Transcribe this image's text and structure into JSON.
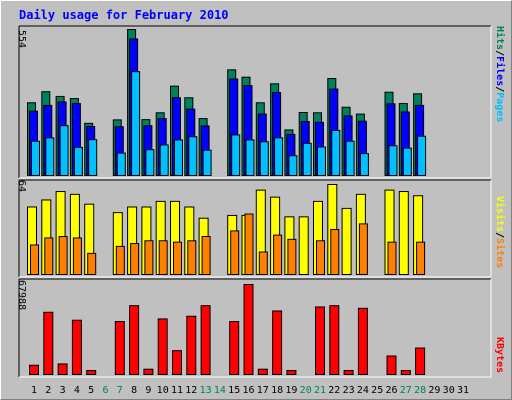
{
  "title": "Daily usage for February 2010",
  "colors": {
    "background": "#c0c0c0",
    "title": "#0000ff",
    "hits": "#00805c",
    "files": "#0000ff",
    "pages": "#00c0ff",
    "visits": "#ffff00",
    "sites": "#ff8000",
    "kbytes": "#ff0000",
    "weekend_day_label": "#00805c",
    "day_label": "#000000"
  },
  "chart_data": [
    {
      "type": "bar",
      "panel": "hits-files-pages",
      "y_max_label": "554",
      "ylim": [
        0,
        554
      ],
      "legend": [
        "Pages",
        "Files",
        "Hits"
      ],
      "legend_separator": "/",
      "series": [
        {
          "name": "Hits",
          "values": [
            276,
            318,
            300,
            292,
            198,
            0,
            211,
            554,
            212,
            238,
            339,
            295,
            216,
            0,
            401,
            373,
            276,
            348,
            173,
            239,
            238,
            368,
            259,
            233,
            0,
            316,
            273,
            310
          ]
        },
        {
          "name": "Files",
          "values": [
            244,
            266,
            279,
            273,
            186,
            0,
            185,
            518,
            189,
            216,
            295,
            252,
            188,
            0,
            366,
            341,
            233,
            315,
            156,
            205,
            202,
            328,
            226,
            206,
            0,
            272,
            241,
            266
          ]
        },
        {
          "name": "Pages",
          "values": [
            130,
            143,
            189,
            107,
            136,
            0,
            85,
            394,
            98,
            116,
            135,
            147,
            96,
            0,
            154,
            135,
            128,
            143,
            75,
            122,
            108,
            171,
            130,
            83,
            0,
            113,
            104,
            149
          ]
        }
      ]
    },
    {
      "type": "bar",
      "panel": "visits-sites",
      "y_max_label": "64",
      "ylim": [
        0,
        64
      ],
      "legend": [
        "Sites",
        "Visits"
      ],
      "legend_separator": "/",
      "series": [
        {
          "name": "Visits",
          "values": [
            48,
            53,
            59,
            57,
            50,
            0,
            44,
            48,
            48,
            52,
            52,
            48,
            40,
            0,
            42,
            42,
            60,
            55,
            41,
            41,
            52,
            64,
            47,
            57,
            0,
            60,
            59,
            56
          ]
        },
        {
          "name": "Sites",
          "values": [
            21,
            26,
            27,
            26,
            15,
            0,
            20,
            22,
            24,
            24,
            23,
            24,
            27,
            0,
            31,
            43,
            16,
            28,
            25,
            0,
            24,
            32,
            0,
            36,
            0,
            23,
            0,
            23
          ]
        }
      ]
    },
    {
      "type": "bar",
      "panel": "kbytes",
      "y_max_label": "67988",
      "ylim": [
        0,
        67988
      ],
      "legend": [
        "KBytes"
      ],
      "series": [
        {
          "name": "KBytes",
          "values": [
            7000,
            47000,
            8000,
            41000,
            3000,
            0,
            40000,
            52000,
            4000,
            42000,
            18000,
            44000,
            52000,
            0,
            40000,
            67988,
            4000,
            48000,
            3000,
            0,
            51000,
            52000,
            3000,
            50000,
            0,
            14000,
            3000,
            20000
          ]
        }
      ]
    }
  ],
  "days": [
    "1",
    "2",
    "3",
    "4",
    "5",
    "6",
    "7",
    "8",
    "9",
    "10",
    "11",
    "12",
    "13",
    "14",
    "15",
    "16",
    "17",
    "18",
    "19",
    "20",
    "21",
    "22",
    "23",
    "24",
    "25",
    "26",
    "27",
    "28",
    "29",
    "30",
    "31"
  ],
  "weekend_days": [
    "6",
    "7",
    "13",
    "14",
    "20",
    "21",
    "27",
    "28"
  ]
}
